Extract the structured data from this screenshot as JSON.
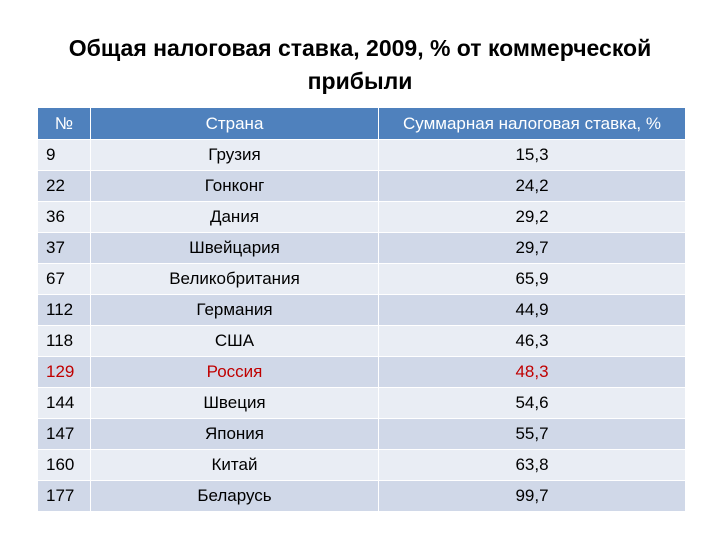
{
  "title_line1": "Общая налоговая ставка, 2009, % от коммерческой",
  "title_line2": "прибыли",
  "table": {
    "headers": [
      "№",
      "Страна",
      "Суммарная налоговая ставка, %"
    ],
    "rows": [
      {
        "rank": "9",
        "country": "Грузия",
        "rate": "15,3"
      },
      {
        "rank": "22",
        "country": "Гонконг",
        "rate": "24,2"
      },
      {
        "rank": "36",
        "country": "Дания",
        "rate": "29,2"
      },
      {
        "rank": "37",
        "country": "Швейцария",
        "rate": "29,7"
      },
      {
        "rank": "67",
        "country": "Великобритания",
        "rate": "65,9"
      },
      {
        "rank": "112",
        "country": "Германия",
        "rate": "44,9"
      },
      {
        "rank": "118",
        "country": "США",
        "rate": "46,3"
      },
      {
        "rank": "129",
        "country": "Россия",
        "rate": "48,3"
      },
      {
        "rank": "144",
        "country": "Швеция",
        "rate": "54,6"
      },
      {
        "rank": "147",
        "country": "Япония",
        "rate": "55,7"
      },
      {
        "rank": "160",
        "country": "Китай",
        "rate": "63,8"
      },
      {
        "rank": "177",
        "country": "Беларусь",
        "rate": "99,7"
      }
    ],
    "highlight_row": 7,
    "highlight_color": "#c00000",
    "header_color": "#4f81bd"
  }
}
